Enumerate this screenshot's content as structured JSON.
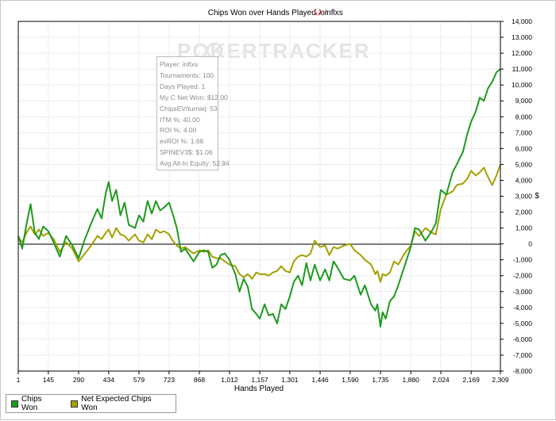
{
  "chart_data": {
    "type": "line",
    "title": "Chips Won over Hands Played for",
    "player_name": "inflxs",
    "watermark": "POKERTRACKER",
    "xlabel": "Hands Played",
    "ylabel": "$",
    "xlim": [
      1,
      2309
    ],
    "ylim": [
      -8000,
      14000
    ],
    "x_ticks": [
      "1",
      "145",
      "290",
      "434",
      "579",
      "723",
      "868",
      "1,012",
      "1,157",
      "1,301",
      "1,446",
      "1,590",
      "1,735",
      "1,880",
      "2,024",
      "2,169",
      "2,309"
    ],
    "y_ticks": [
      "14,000",
      "13,000",
      "12,000",
      "11,000",
      "10,000",
      "9,000",
      "8,000",
      "7,000",
      "6,000",
      "5,000",
      "4,000",
      "3,000",
      "2,000",
      "1,000",
      "0",
      "-1,000",
      "-2,000",
      "-3,000",
      "-4,000",
      "-5,000",
      "-6,000",
      "-7,000",
      "-8,000"
    ],
    "series": [
      {
        "name": "Chips Won",
        "color": "#1e9a1e",
        "x": [
          1,
          20,
          40,
          60,
          80,
          100,
          120,
          145,
          170,
          200,
          230,
          260,
          290,
          320,
          350,
          380,
          400,
          420,
          434,
          450,
          470,
          490,
          510,
          530,
          560,
          579,
          600,
          620,
          640,
          660,
          680,
          700,
          723,
          740,
          760,
          780,
          800,
          820,
          840,
          868,
          890,
          910,
          930,
          950,
          970,
          990,
          1012,
          1040,
          1060,
          1080,
          1100,
          1120,
          1140,
          1157,
          1180,
          1200,
          1220,
          1240,
          1260,
          1280,
          1301,
          1320,
          1340,
          1360,
          1380,
          1400,
          1420,
          1446,
          1470,
          1490,
          1510,
          1530,
          1560,
          1590,
          1610,
          1640,
          1660,
          1690,
          1710,
          1720,
          1735,
          1745,
          1760,
          1780,
          1800,
          1820,
          1850,
          1880,
          1900,
          1920,
          1950,
          1980,
          2000,
          2024,
          2050,
          2080,
          2100,
          2130,
          2150,
          2169,
          2190,
          2210,
          2230,
          2250,
          2270,
          2290,
          2309
        ],
        "values": [
          500,
          -300,
          1200,
          2500,
          700,
          300,
          1100,
          800,
          100,
          -800,
          500,
          -100,
          -900,
          300,
          1300,
          2200,
          1600,
          3200,
          3900,
          2700,
          3400,
          1800,
          2600,
          1200,
          1000,
          1800,
          1400,
          2700,
          1900,
          2700,
          2100,
          2300,
          2600,
          1900,
          1000,
          -500,
          -300,
          -700,
          -1100,
          -500,
          -400,
          -500,
          -1500,
          -1300,
          -700,
          -600,
          -1000,
          -1900,
          -3000,
          -2200,
          -2700,
          -4100,
          -4400,
          -4700,
          -3800,
          -4500,
          -4400,
          -5000,
          -3800,
          -4100,
          -3300,
          -2400,
          -2000,
          -2600,
          -1200,
          -2300,
          -1300,
          -2300,
          -1600,
          -2300,
          -1100,
          -1500,
          -2200,
          -2300,
          -2000,
          -3200,
          -2600,
          -3800,
          -4200,
          -3800,
          -5200,
          -4300,
          -4700,
          -3600,
          -3300,
          -2600,
          -1400,
          -200,
          1000,
          900,
          200,
          800,
          1300,
          3400,
          3100,
          4500,
          5000,
          5800,
          6900,
          7700,
          8300,
          9200,
          9000,
          9800,
          10200,
          10800,
          11000
        ]
      },
      {
        "name": "Net Expected Chips Won",
        "color": "#a4a000",
        "x": [
          1,
          20,
          40,
          60,
          80,
          100,
          120,
          145,
          170,
          200,
          230,
          260,
          290,
          320,
          350,
          380,
          400,
          420,
          434,
          450,
          470,
          490,
          510,
          530,
          560,
          579,
          600,
          620,
          640,
          660,
          680,
          700,
          723,
          740,
          760,
          780,
          800,
          820,
          840,
          868,
          890,
          910,
          930,
          950,
          970,
          990,
          1012,
          1040,
          1060,
          1080,
          1100,
          1120,
          1140,
          1157,
          1180,
          1200,
          1220,
          1240,
          1260,
          1280,
          1301,
          1320,
          1340,
          1360,
          1380,
          1400,
          1420,
          1446,
          1470,
          1490,
          1510,
          1530,
          1560,
          1590,
          1610,
          1640,
          1660,
          1690,
          1710,
          1720,
          1735,
          1745,
          1760,
          1780,
          1800,
          1820,
          1850,
          1880,
          1900,
          1920,
          1950,
          1980,
          2000,
          2024,
          2050,
          2080,
          2100,
          2130,
          2150,
          2169,
          2190,
          2210,
          2230,
          2250,
          2270,
          2290,
          2309
        ],
        "values": [
          400,
          100,
          700,
          1100,
          600,
          900,
          500,
          700,
          300,
          -500,
          100,
          -300,
          -1100,
          -600,
          -100,
          500,
          300,
          700,
          900,
          400,
          1000,
          600,
          500,
          200,
          600,
          200,
          100,
          600,
          300,
          900,
          700,
          800,
          600,
          200,
          -100,
          -300,
          -200,
          -400,
          -600,
          -400,
          -500,
          -400,
          -800,
          -900,
          -900,
          -1100,
          -1300,
          -1400,
          -1900,
          -2100,
          -1900,
          -2200,
          -1800,
          -1900,
          -1900,
          -2000,
          -1800,
          -1700,
          -1400,
          -1700,
          -1800,
          -1100,
          -800,
          -700,
          -800,
          -600,
          200,
          -200,
          -100,
          -700,
          -200,
          -300,
          -100,
          0,
          -400,
          -700,
          -1000,
          -1300,
          -1900,
          -1700,
          -2400,
          -1900,
          -2000,
          -1800,
          -1100,
          -1300,
          -600,
          -100,
          800,
          500,
          1000,
          700,
          600,
          2200,
          3100,
          3300,
          3700,
          3800,
          4100,
          4600,
          4300,
          4500,
          4800,
          4200,
          3700,
          4300,
          5000
        ]
      }
    ]
  },
  "stats": [
    "Player: inflxs",
    "Tournaments: 100",
    "Days Played: 1",
    "My C Net Won: $12.00",
    "ChipsEV/turniej: 53",
    "ITM %: 40.00",
    "ROI %: 4.00",
    "evROI %: 1.68",
    "SPINEV3$: $1.06",
    "Avg All-In Equity: 52.94"
  ],
  "colors": {
    "chips_won": "#1e9a1e",
    "net_expected": "#a4a000",
    "zero_line": "#000000",
    "watermark": "#e4e4e4"
  }
}
